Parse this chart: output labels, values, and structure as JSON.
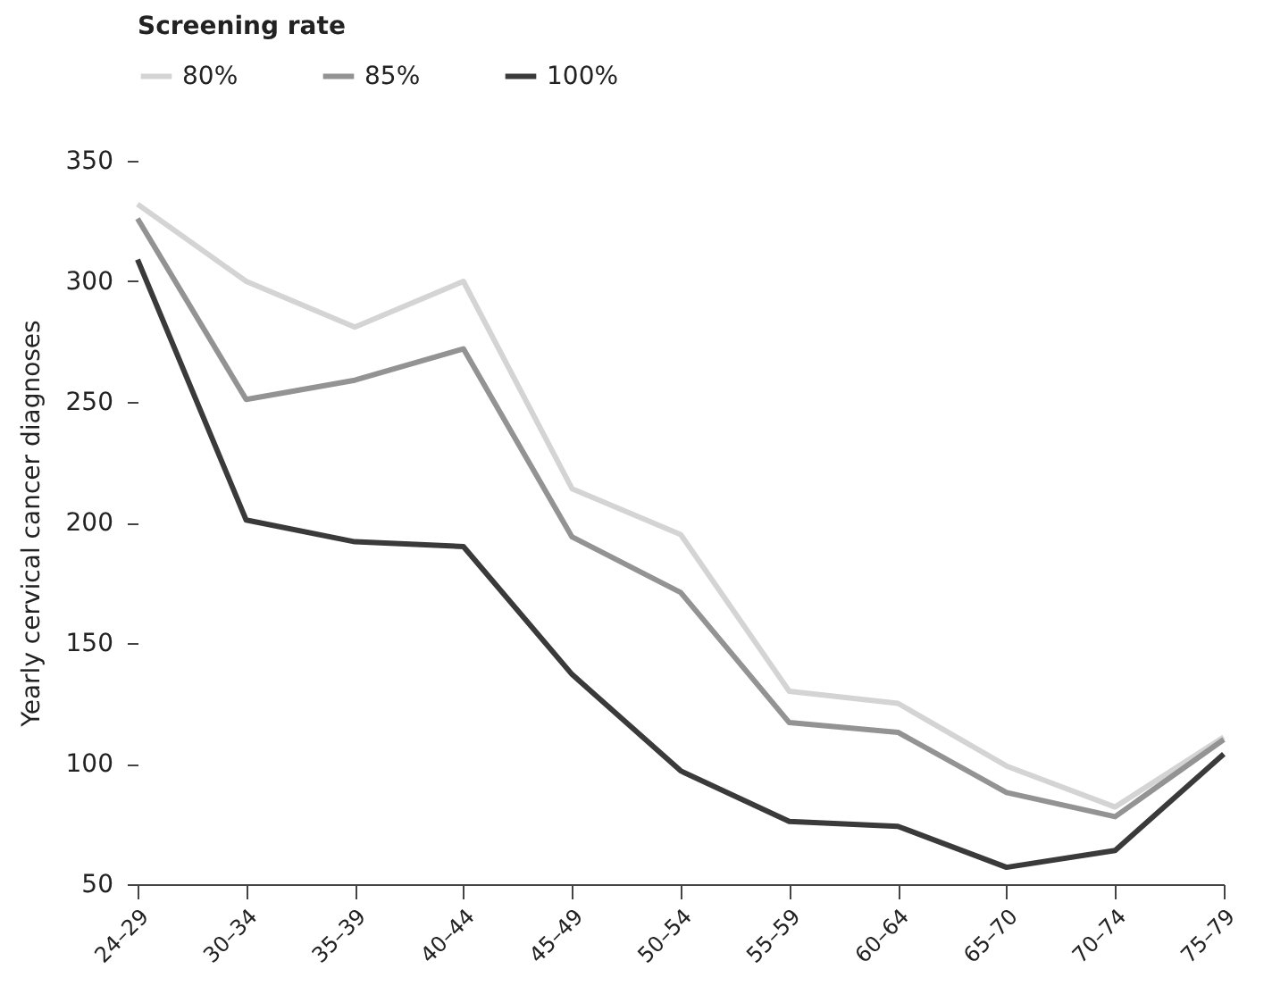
{
  "chart_data": {
    "type": "line",
    "legend_title": "Screening rate",
    "ylabel": "Yearly cervical cancer diagnoses",
    "categories": [
      "24–29",
      "30–34",
      "35–39",
      "40–44",
      "45–49",
      "50–54",
      "55–59",
      "60–64",
      "65–70",
      "70–74",
      "75–79"
    ],
    "series": [
      {
        "name": "80%",
        "color": "#d4d4d4",
        "values": [
          332,
          300,
          281,
          300,
          214,
          195,
          130,
          125,
          99,
          82,
          111
        ]
      },
      {
        "name": "85%",
        "color": "#939393",
        "values": [
          326,
          251,
          259,
          272,
          194,
          171,
          117,
          113,
          88,
          78,
          110
        ]
      },
      {
        "name": "100%",
        "color": "#3a3a3a",
        "values": [
          309,
          201,
          192,
          190,
          137,
          97,
          76,
          74,
          57,
          64,
          104
        ]
      }
    ],
    "ylim": [
      50,
      350
    ],
    "yticks": [
      50,
      100,
      150,
      200,
      250,
      300,
      350
    ],
    "legend": "top left",
    "grid": false,
    "marker": "none",
    "line_style": "solid"
  }
}
